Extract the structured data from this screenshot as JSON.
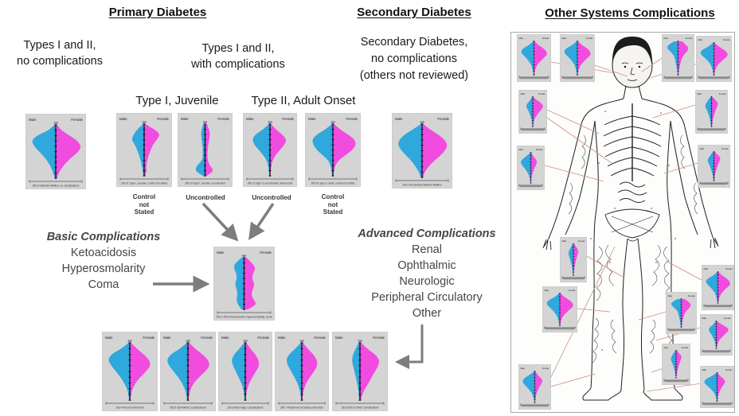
{
  "headings": {
    "primary": "Primary Diabetes",
    "secondary": "Secondary Diabetes",
    "other_systems": "Other Systems Complications"
  },
  "labels": {
    "no_complications": "Types I and II,\nno complications",
    "with_complications": "Types I and II,\nwith complications",
    "secondary_sub": "Secondary Diabetes,\nno complications\n(others not reviewed)",
    "type1": "Type I, Juvenile",
    "type2": "Type II, Adult Onset",
    "control_not_stated": "Control\nnot\nStated",
    "uncontrolled": "Uncontrolled",
    "basic_title": "Basic Complications",
    "basic_items": [
      "Ketoacidosis",
      "Hyperosmolarity",
      "Coma"
    ],
    "advanced_title": "Advanced Complications",
    "advanced_items": [
      "Renal",
      "Ophthalmic",
      "Neurologic",
      "Peripheral Circulatory",
      "Other"
    ]
  },
  "pyramid": {
    "male_label": "Male",
    "female_label": "Female",
    "age_ticks": [
      100,
      90,
      80,
      70,
      60,
      50,
      40,
      30,
      20,
      10,
      0
    ],
    "top_tick_label": "100"
  },
  "colors": {
    "male": "#2FA8DE",
    "female": "#F24BE0",
    "chart_bg": "#D4D4D4",
    "chart_border": "#BDBDBD",
    "axis": "#14142a",
    "arrow": "#7D7D7D",
    "connector": "#CC8B8B"
  },
  "charts": {
    "main": [
      {
        "id": "A",
        "caption": "250.0 Diabetes Mellitus, no complications",
        "profile": {
          "male": [
            0.05,
            0.25,
            0.75,
            0.95,
            0.85,
            0.65,
            0.45,
            0.3,
            0.18,
            0.1,
            0.04
          ],
          "female": [
            0.05,
            0.2,
            0.55,
            0.85,
            1.0,
            0.9,
            0.65,
            0.42,
            0.25,
            0.12,
            0.05
          ]
        }
      },
      {
        "id": "B",
        "caption": "250.x1 Type I, juvenile, control not stated",
        "profile": {
          "male": [
            0.05,
            0.3,
            0.45,
            0.55,
            0.4,
            0.3,
            0.22,
            0.15,
            0.1,
            0.06,
            0.03
          ],
          "female": [
            0.05,
            0.45,
            0.7,
            0.55,
            0.38,
            0.28,
            0.2,
            0.14,
            0.08,
            0.12,
            0.04
          ]
        }
      },
      {
        "id": "C",
        "caption": "250.x3 Type I, juvenile, uncontrolled",
        "profile": {
          "male": [
            0.08,
            0.15,
            0.18,
            0.15,
            0.12,
            0.1,
            0.1,
            0.12,
            0.35,
            0.45,
            0.1
          ],
          "female": [
            0.08,
            0.18,
            0.22,
            0.18,
            0.14,
            0.12,
            0.1,
            0.12,
            0.2,
            0.4,
            0.08
          ]
        }
      },
      {
        "id": "D",
        "caption": "250.x2 Type II, uncontrolled, adult onset",
        "profile": {
          "male": [
            0.05,
            0.3,
            0.65,
            0.8,
            0.7,
            0.5,
            0.3,
            0.15,
            0.08,
            0.05,
            0.03
          ],
          "female": [
            0.05,
            0.25,
            0.55,
            0.75,
            0.65,
            0.45,
            0.25,
            0.12,
            0.06,
            0.04,
            0.02
          ]
        }
      },
      {
        "id": "E",
        "caption": "250.x0 Type II, adult, control not stated",
        "profile": {
          "male": [
            0.05,
            0.3,
            0.7,
            0.9,
            0.85,
            0.7,
            0.45,
            0.2,
            0.1,
            0.05,
            0.03
          ],
          "female": [
            0.05,
            0.3,
            0.65,
            0.95,
            1.0,
            0.85,
            0.55,
            0.25,
            0.1,
            0.05,
            0.02
          ]
        }
      },
      {
        "id": "F",
        "caption": "249.0 Secondary Diabetes Mellitus",
        "profile": {
          "male": [
            0.05,
            0.35,
            0.7,
            0.9,
            0.95,
            0.8,
            0.6,
            0.4,
            0.25,
            0.12,
            0.05
          ],
          "female": [
            0.05,
            0.3,
            0.65,
            0.9,
            1.0,
            0.9,
            0.7,
            0.45,
            0.25,
            0.1,
            0.04
          ]
        }
      },
      {
        "id": "G",
        "caption": "250.1-250.3 Ketoacidosis, Hyperosmolarity, coma",
        "profile": {
          "male": [
            0.1,
            0.35,
            0.4,
            0.3,
            0.28,
            0.35,
            0.3,
            0.25,
            0.3,
            0.25,
            0.1
          ],
          "female": [
            0.1,
            0.3,
            0.45,
            0.35,
            0.3,
            0.4,
            0.35,
            0.28,
            0.35,
            0.5,
            0.15
          ]
        }
      },
      {
        "id": "H",
        "caption": "250.4 Renal Involvement",
        "profile": {
          "male": [
            0.05,
            0.35,
            0.8,
            0.95,
            0.8,
            0.6,
            0.4,
            0.25,
            0.12,
            0.06,
            0.03
          ],
          "female": [
            0.05,
            0.3,
            0.6,
            0.85,
            0.9,
            0.7,
            0.45,
            0.25,
            0.12,
            0.05,
            0.02
          ]
        }
      },
      {
        "id": "I",
        "caption": "250.5 Ophthalmic Complications",
        "profile": {
          "male": [
            0.05,
            0.32,
            0.75,
            0.92,
            0.82,
            0.62,
            0.42,
            0.26,
            0.14,
            0.07,
            0.03
          ],
          "female": [
            0.05,
            0.3,
            0.62,
            0.88,
            0.95,
            0.75,
            0.48,
            0.26,
            0.12,
            0.05,
            0.02
          ]
        }
      },
      {
        "id": "J",
        "caption": "250.6 Neurologic Complications",
        "profile": {
          "male": [
            0.05,
            0.25,
            0.5,
            0.62,
            0.55,
            0.42,
            0.3,
            0.18,
            0.1,
            0.05,
            0.03
          ],
          "female": [
            0.05,
            0.22,
            0.45,
            0.6,
            0.62,
            0.48,
            0.32,
            0.18,
            0.09,
            0.04,
            0.02
          ]
        }
      },
      {
        "id": "K",
        "caption": "250.7 Peripheral Circulatory Disorders",
        "profile": {
          "male": [
            0.05,
            0.28,
            0.58,
            0.7,
            0.62,
            0.48,
            0.33,
            0.2,
            0.11,
            0.05,
            0.03
          ],
          "female": [
            0.05,
            0.25,
            0.52,
            0.68,
            0.7,
            0.55,
            0.36,
            0.2,
            0.1,
            0.05,
            0.02
          ]
        }
      },
      {
        "id": "L",
        "caption": "250.8-250.9 Other Complications",
        "profile": {
          "male": [
            0.05,
            0.18,
            0.3,
            0.35,
            0.3,
            0.24,
            0.18,
            0.12,
            0.08,
            0.05,
            0.03
          ],
          "female": [
            0.05,
            0.3,
            0.65,
            0.85,
            0.8,
            0.65,
            0.5,
            0.38,
            0.22,
            0.1,
            0.04
          ]
        }
      }
    ],
    "mini_profile_pool": [
      {
        "male": [
          0.06,
          0.3,
          0.75,
          0.95,
          0.8,
          0.55,
          0.35,
          0.2,
          0.12,
          0.06,
          0.03
        ],
        "female": [
          0.06,
          0.28,
          0.65,
          0.9,
          0.95,
          0.7,
          0.45,
          0.25,
          0.12,
          0.06,
          0.03
        ]
      },
      {
        "male": [
          0.3,
          0.75,
          0.85,
          0.6,
          0.35,
          0.25,
          0.2,
          0.15,
          0.1,
          0.06,
          0.03
        ],
        "female": [
          0.3,
          0.6,
          0.8,
          0.7,
          0.45,
          0.3,
          0.22,
          0.15,
          0.1,
          0.05,
          0.03
        ]
      },
      {
        "male": [
          0.08,
          0.25,
          0.4,
          0.5,
          0.4,
          0.3,
          0.22,
          0.15,
          0.1,
          0.06,
          0.03
        ],
        "female": [
          0.08,
          0.3,
          0.5,
          0.45,
          0.35,
          0.28,
          0.2,
          0.14,
          0.08,
          0.05,
          0.03
        ]
      },
      {
        "male": [
          0.05,
          0.2,
          0.45,
          0.6,
          0.5,
          0.35,
          0.25,
          0.15,
          0.08,
          0.05,
          0.03
        ],
        "female": [
          0.05,
          0.35,
          0.75,
          0.95,
          0.85,
          0.6,
          0.4,
          0.22,
          0.12,
          0.06,
          0.03
        ]
      },
      {
        "male": [
          0.05,
          0.35,
          0.75,
          0.95,
          0.85,
          0.6,
          0.4,
          0.22,
          0.12,
          0.06,
          0.03
        ],
        "female": [
          0.05,
          0.2,
          0.45,
          0.6,
          0.5,
          0.35,
          0.25,
          0.15,
          0.08,
          0.05,
          0.03
        ]
      }
    ],
    "minis": [
      0,
      0,
      1,
      0,
      3,
      2,
      4,
      2,
      2,
      0,
      4,
      1,
      2,
      0,
      3,
      4
    ]
  }
}
